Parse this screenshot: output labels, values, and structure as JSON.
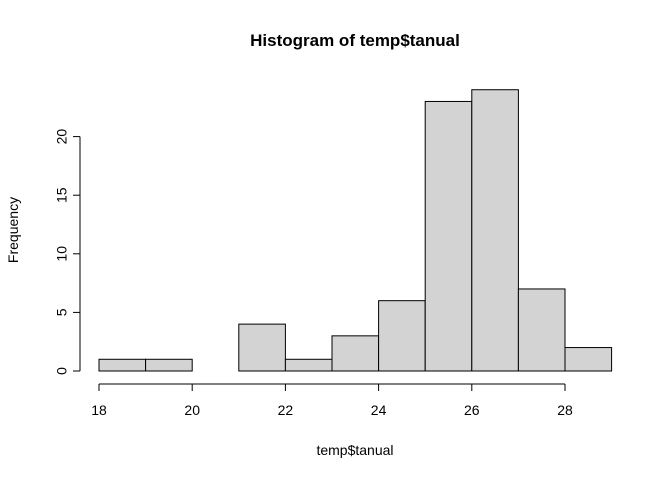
{
  "chart_data": {
    "type": "bar",
    "title": "Histogram of temp$tanual",
    "xlabel": "temp$tanual",
    "ylabel": "Frequency",
    "bins": [
      {
        "x0": 18,
        "x1": 19,
        "count": 1
      },
      {
        "x0": 19,
        "x1": 20,
        "count": 1
      },
      {
        "x0": 20,
        "x1": 21,
        "count": 0
      },
      {
        "x0": 21,
        "x1": 22,
        "count": 4
      },
      {
        "x0": 22,
        "x1": 23,
        "count": 1
      },
      {
        "x0": 23,
        "x1": 24,
        "count": 3
      },
      {
        "x0": 24,
        "x1": 25,
        "count": 6
      },
      {
        "x0": 25,
        "x1": 26,
        "count": 23
      },
      {
        "x0": 26,
        "x1": 27,
        "count": 24
      },
      {
        "x0": 27,
        "x1": 28,
        "count": 7
      },
      {
        "x0": 28,
        "x1": 29,
        "count": 2
      }
    ],
    "xlim": [
      18,
      29
    ],
    "ylim": [
      0,
      24
    ],
    "xticks": [
      18,
      20,
      22,
      24,
      26,
      28
    ],
    "yticks": [
      0,
      5,
      10,
      15,
      20
    ],
    "bar_color": "#d3d3d3",
    "grid": false
  }
}
